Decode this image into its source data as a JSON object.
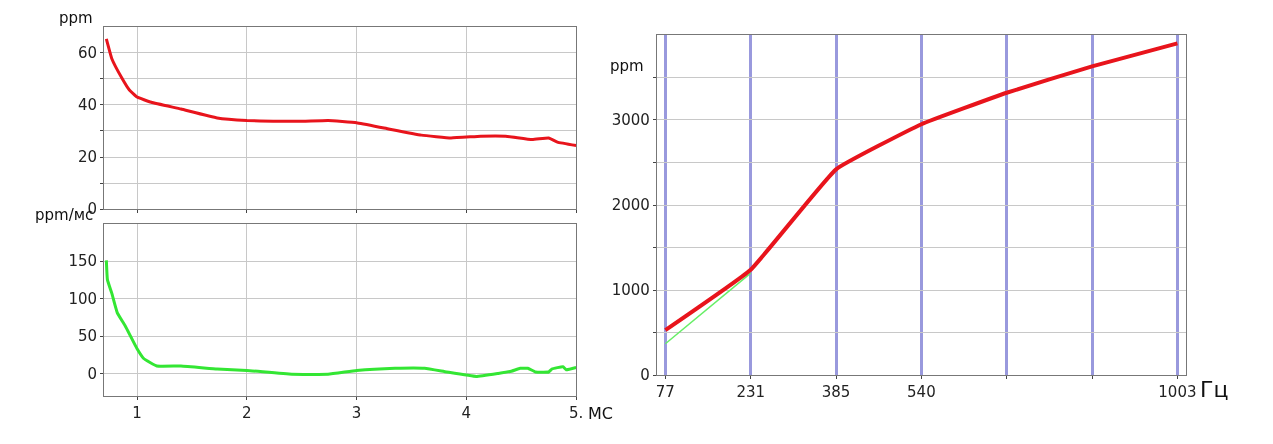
{
  "chart_data": [
    {
      "type": "line",
      "ylabel": "ppm",
      "xlim": [
        0.7,
        5
      ],
      "ylim": [
        0,
        70
      ],
      "xticks": [
        {
          "value": 1,
          "label": null
        },
        {
          "value": 2,
          "label": null
        },
        {
          "value": 3,
          "label": null
        },
        {
          "value": 4,
          "label": null
        },
        {
          "value": 5,
          "label": null
        }
      ],
      "yticks": [
        0,
        {
          "value": 10,
          "label": null
        },
        20,
        {
          "value": 30,
          "label": null
        },
        40,
        {
          "value": 50,
          "label": null
        },
        60
      ],
      "grid": true,
      "tick_labels": "y",
      "series": [
        {
          "color": "#e8141c",
          "x": [
            0.72,
            0.77,
            0.86,
            0.93,
            1.0,
            1.13,
            1.4,
            1.73,
            2.0,
            2.24,
            2.51,
            2.74,
            3.0,
            3.25,
            3.59,
            3.86,
            4.13,
            4.36,
            4.6,
            4.75,
            4.83,
            5.0
          ],
          "values": [
            65.3,
            57.7,
            50.4,
            45.7,
            43,
            41,
            38.4,
            35,
            34,
            33.7,
            33.7,
            34,
            33.1,
            31.1,
            28.4,
            27.3,
            28,
            28,
            26.7,
            27.3,
            25.7,
            24.4
          ]
        }
      ]
    },
    {
      "type": "line",
      "ylabel": "ppm/мс",
      "xlabel": "МС",
      "xlim": [
        0.7,
        5
      ],
      "ylim": [
        -30,
        200
      ],
      "xticks": [
        1,
        2,
        3,
        4,
        {
          "value": 5,
          "label": "5."
        }
      ],
      "yticks": [
        0,
        50,
        100,
        150
      ],
      "grid": true,
      "series": [
        {
          "color": "#33e633",
          "x": [
            0.72,
            0.73,
            0.77,
            0.82,
            0.89,
            1.0,
            1.06,
            1.18,
            1.4,
            1.73,
            2.0,
            2.41,
            2.74,
            3.0,
            3.35,
            3.62,
            3.82,
            4.09,
            4.29,
            4.41,
            4.49,
            4.56,
            4.63,
            4.75,
            4.78,
            4.88,
            4.91,
            5.0
          ],
          "values": [
            151,
            125,
            107,
            81,
            64,
            33,
            20,
            10,
            10,
            6,
            4,
            -1,
            -1,
            4,
            7,
            7,
            2,
            -4,
            0,
            3,
            7,
            7,
            2,
            2,
            6,
            9,
            5,
            8
          ]
        }
      ]
    },
    {
      "type": "line",
      "ylabel": "ppm",
      "xlabel": "Гц",
      "categories": [
        "77",
        "231",
        "385",
        "540",
        null,
        null,
        "1003"
      ],
      "ylim": [
        0,
        4000
      ],
      "yticks": [
        0,
        {
          "value": 500,
          "label": null
        },
        1000,
        {
          "value": 1500,
          "label": null
        },
        2000,
        {
          "value": 2500,
          "label": null
        },
        3000,
        {
          "value": 3500,
          "label": null
        }
      ],
      "grid": true,
      "series": [
        {
          "color": "#66ee66",
          "values": [
            370,
            1200,
            null,
            null,
            null,
            null,
            null
          ]
        },
        {
          "color": "#e8141c",
          "values": [
            530,
            1240,
            2420,
            2950,
            3320,
            3630,
            3900
          ]
        }
      ]
    }
  ]
}
